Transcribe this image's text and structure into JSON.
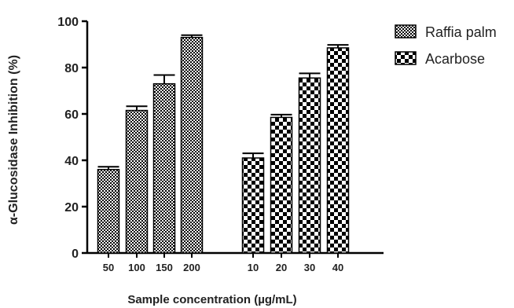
{
  "chart_data": {
    "type": "bar",
    "xlabel": "Sample concentration (µg/mL)",
    "ylabel": "α-Glucosidase Inhibition (%)",
    "ylim": [
      0,
      100
    ],
    "yticks": [
      0,
      20,
      40,
      60,
      80,
      100
    ],
    "grid": false,
    "legend_position": "top-right",
    "series": [
      {
        "name": "Raffia palm",
        "categories": [
          "50",
          "100",
          "150",
          "200"
        ],
        "values": [
          36,
          61.5,
          73,
          93
        ],
        "errors": [
          1.2,
          1.8,
          3.8,
          1.0
        ],
        "pattern": "fine-check",
        "color": "#000000"
      },
      {
        "name": "Acarbose",
        "categories": [
          "10",
          "20",
          "30",
          "40"
        ],
        "values": [
          41,
          58.5,
          75.5,
          88.5
        ],
        "errors": [
          2.0,
          1.2,
          2.0,
          1.3
        ],
        "pattern": "coarse-check",
        "color": "#000000"
      }
    ]
  }
}
